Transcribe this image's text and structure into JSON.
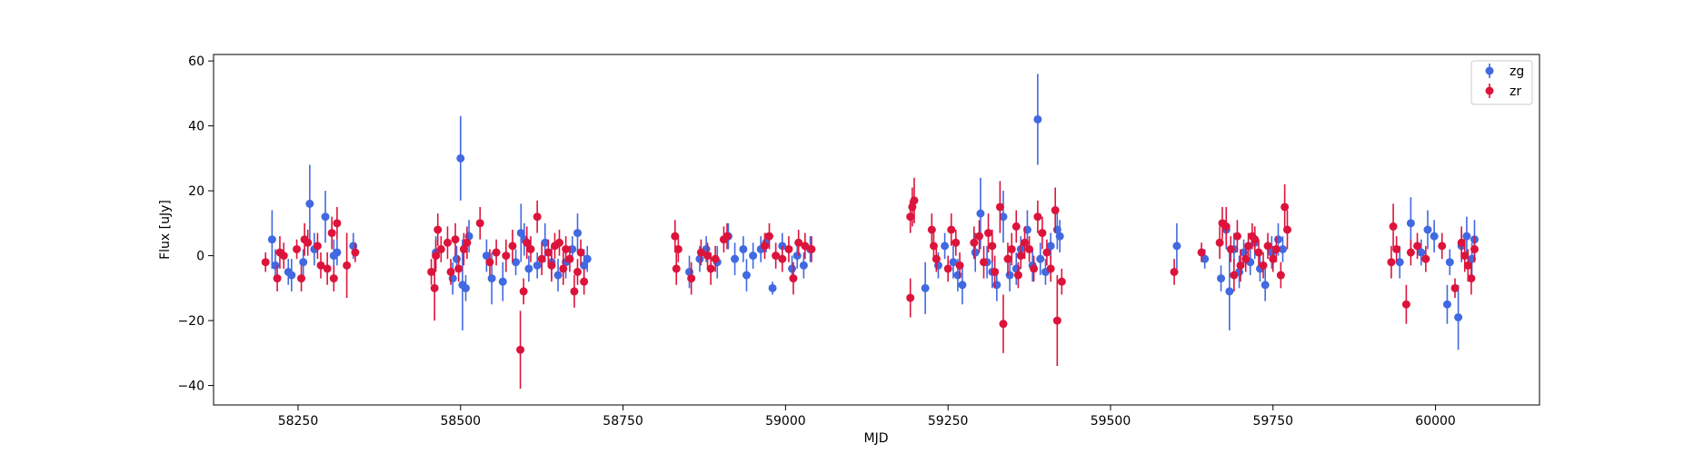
{
  "chart_data": {
    "type": "scatter",
    "title": "",
    "xlabel": "MJD",
    "ylabel": "Flux [uJy]",
    "xlim": [
      58120,
      60160
    ],
    "ylim": [
      -46,
      62
    ],
    "xticks": [
      58250,
      58500,
      58750,
      59000,
      59250,
      59500,
      59750,
      60000
    ],
    "yticks": [
      -40,
      -20,
      0,
      20,
      40,
      60
    ],
    "grid": false,
    "legend_position": "top-right",
    "series": [
      {
        "name": "zg",
        "color": "#4169e1",
        "points": [
          [
            58210,
            5,
            9
          ],
          [
            58215,
            -3,
            5
          ],
          [
            58235,
            -5,
            4
          ],
          [
            58240,
            -6,
            5
          ],
          [
            58258,
            -2,
            4
          ],
          [
            58268,
            16,
            12
          ],
          [
            58275,
            2,
            5
          ],
          [
            58292,
            12,
            8
          ],
          [
            58305,
            0,
            5
          ],
          [
            58310,
            1,
            4
          ],
          [
            58335,
            3,
            4
          ],
          [
            58462,
            1,
            5
          ],
          [
            58488,
            -7,
            5
          ],
          [
            58494,
            -1,
            4
          ],
          [
            58500,
            30,
            13
          ],
          [
            58503,
            -9,
            14
          ],
          [
            58508,
            -10,
            4
          ],
          [
            58513,
            6,
            5
          ],
          [
            58540,
            0,
            5
          ],
          [
            58548,
            -7,
            8
          ],
          [
            58565,
            -8,
            6
          ],
          [
            58585,
            -2,
            4
          ],
          [
            58593,
            7,
            9
          ],
          [
            58598,
            5,
            5
          ],
          [
            58605,
            -4,
            4
          ],
          [
            58618,
            -3,
            4
          ],
          [
            58630,
            4,
            6
          ],
          [
            58640,
            -2,
            5
          ],
          [
            58650,
            -6,
            5
          ],
          [
            58662,
            -2,
            5
          ],
          [
            58672,
            2,
            4
          ],
          [
            58680,
            7,
            6
          ],
          [
            58690,
            -3,
            5
          ],
          [
            58695,
            -1,
            4
          ],
          [
            58852,
            -5,
            5
          ],
          [
            58868,
            -1,
            4
          ],
          [
            58878,
            2,
            4
          ],
          [
            58895,
            -2,
            5
          ],
          [
            58912,
            6,
            4
          ],
          [
            58922,
            -1,
            5
          ],
          [
            58935,
            2,
            4
          ],
          [
            58940,
            -6,
            5
          ],
          [
            58950,
            0,
            4
          ],
          [
            58962,
            2,
            4
          ],
          [
            58970,
            4,
            3
          ],
          [
            58980,
            -10,
            2
          ],
          [
            58995,
            3,
            4
          ],
          [
            59010,
            -4,
            4
          ],
          [
            59018,
            0,
            4
          ],
          [
            59028,
            -3,
            4
          ],
          [
            59038,
            2,
            4
          ],
          [
            59215,
            -10,
            8
          ],
          [
            59235,
            -3,
            4
          ],
          [
            59245,
            3,
            4
          ],
          [
            59258,
            -2,
            5
          ],
          [
            59265,
            -6,
            5
          ],
          [
            59272,
            -9,
            6
          ],
          [
            59292,
            1,
            6
          ],
          [
            59300,
            13,
            11
          ],
          [
            59310,
            -2,
            5
          ],
          [
            59318,
            -5,
            5
          ],
          [
            59325,
            -9,
            5
          ],
          [
            59335,
            12,
            8
          ],
          [
            59345,
            -6,
            5
          ],
          [
            59355,
            -4,
            5
          ],
          [
            59362,
            2,
            4
          ],
          [
            59372,
            8,
            6
          ],
          [
            59380,
            -3,
            5
          ],
          [
            59388,
            42,
            14
          ],
          [
            59392,
            -1,
            5
          ],
          [
            59400,
            -5,
            4
          ],
          [
            59408,
            3,
            4
          ],
          [
            59418,
            8,
            6
          ],
          [
            59422,
            6,
            5
          ],
          [
            59602,
            3,
            7
          ],
          [
            59645,
            -1,
            3
          ],
          [
            59670,
            -7,
            4
          ],
          [
            59678,
            8,
            6
          ],
          [
            59683,
            -11,
            12
          ],
          [
            59690,
            2,
            5
          ],
          [
            59698,
            -5,
            5
          ],
          [
            59705,
            1,
            4
          ],
          [
            59715,
            -2,
            4
          ],
          [
            59722,
            4,
            5
          ],
          [
            59730,
            -4,
            4
          ],
          [
            59738,
            -9,
            5
          ],
          [
            59748,
            1,
            5
          ],
          [
            59758,
            5,
            5
          ],
          [
            59765,
            2,
            4
          ],
          [
            59945,
            -2,
            5
          ],
          [
            59962,
            10,
            8
          ],
          [
            59978,
            1,
            4
          ],
          [
            59988,
            8,
            6
          ],
          [
            59998,
            6,
            5
          ],
          [
            60018,
            -15,
            6
          ],
          [
            60022,
            -2,
            4
          ],
          [
            60035,
            -19,
            10
          ],
          [
            60040,
            3,
            5
          ],
          [
            60048,
            6,
            6
          ],
          [
            60056,
            -1,
            5
          ],
          [
            60060,
            5,
            6
          ]
        ]
      },
      {
        "name": "zr",
        "color": "#dc143c",
        "points": [
          [
            58200,
            -2,
            3
          ],
          [
            58218,
            -7,
            4
          ],
          [
            58222,
            1,
            5
          ],
          [
            58228,
            0,
            4
          ],
          [
            58248,
            2,
            3
          ],
          [
            58255,
            -7,
            4
          ],
          [
            58260,
            5,
            5
          ],
          [
            58265,
            4,
            4
          ],
          [
            58280,
            3,
            4
          ],
          [
            58285,
            -3,
            4
          ],
          [
            58295,
            -4,
            5
          ],
          [
            58302,
            7,
            5
          ],
          [
            58305,
            -7,
            4
          ],
          [
            58310,
            10,
            5
          ],
          [
            58325,
            -3,
            10
          ],
          [
            58338,
            1,
            3
          ],
          [
            58455,
            -5,
            4
          ],
          [
            58460,
            -10,
            10
          ],
          [
            58462,
            0,
            5
          ],
          [
            58465,
            8,
            5
          ],
          [
            58470,
            2,
            4
          ],
          [
            58480,
            4,
            5
          ],
          [
            58485,
            -5,
            4
          ],
          [
            58492,
            5,
            5
          ],
          [
            58497,
            -4,
            4
          ],
          [
            58505,
            2,
            5
          ],
          [
            58510,
            4,
            5
          ],
          [
            58530,
            10,
            5
          ],
          [
            58545,
            -2,
            4
          ],
          [
            58555,
            1,
            4
          ],
          [
            58570,
            0,
            5
          ],
          [
            58580,
            3,
            5
          ],
          [
            58592,
            -29,
            12
          ],
          [
            58597,
            -11,
            4
          ],
          [
            58602,
            4,
            5
          ],
          [
            58608,
            2,
            4
          ],
          [
            58618,
            12,
            5
          ],
          [
            58625,
            -1,
            5
          ],
          [
            58635,
            1,
            4
          ],
          [
            58640,
            -3,
            5
          ],
          [
            58645,
            3,
            4
          ],
          [
            58652,
            4,
            4
          ],
          [
            58658,
            -4,
            5
          ],
          [
            58662,
            2,
            4
          ],
          [
            58668,
            -1,
            4
          ],
          [
            58675,
            -11,
            5
          ],
          [
            58680,
            -5,
            4
          ],
          [
            58685,
            1,
            4
          ],
          [
            58690,
            -8,
            4
          ],
          [
            58830,
            6,
            5
          ],
          [
            58832,
            -4,
            5
          ],
          [
            58835,
            2,
            4
          ],
          [
            58855,
            -7,
            5
          ],
          [
            58870,
            1,
            4
          ],
          [
            58880,
            0,
            4
          ],
          [
            58885,
            -4,
            5
          ],
          [
            58892,
            -1,
            4
          ],
          [
            58905,
            5,
            4
          ],
          [
            58910,
            6,
            4
          ],
          [
            58968,
            3,
            4
          ],
          [
            58975,
            6,
            4
          ],
          [
            58985,
            0,
            4
          ],
          [
            58995,
            -1,
            4
          ],
          [
            59005,
            2,
            4
          ],
          [
            59012,
            -7,
            5
          ],
          [
            59020,
            4,
            4
          ],
          [
            59030,
            3,
            4
          ],
          [
            59040,
            2,
            4
          ],
          [
            59192,
            12,
            5
          ],
          [
            59195,
            15,
            6
          ],
          [
            59198,
            17,
            7
          ],
          [
            59192,
            -13,
            6
          ],
          [
            59225,
            8,
            5
          ],
          [
            59228,
            3,
            4
          ],
          [
            59232,
            -1,
            4
          ],
          [
            59250,
            -4,
            4
          ],
          [
            59255,
            8,
            5
          ],
          [
            59262,
            4,
            4
          ],
          [
            59268,
            -3,
            4
          ],
          [
            59290,
            4,
            5
          ],
          [
            59298,
            6,
            5
          ],
          [
            59305,
            -2,
            5
          ],
          [
            59312,
            7,
            6
          ],
          [
            59318,
            3,
            5
          ],
          [
            59322,
            -5,
            5
          ],
          [
            59330,
            15,
            8
          ],
          [
            59335,
            -21,
            9
          ],
          [
            59342,
            -1,
            5
          ],
          [
            59348,
            2,
            5
          ],
          [
            59355,
            9,
            5
          ],
          [
            59358,
            -6,
            4
          ],
          [
            59362,
            0,
            4
          ],
          [
            59368,
            4,
            5
          ],
          [
            59375,
            2,
            4
          ],
          [
            59382,
            -4,
            4
          ],
          [
            59388,
            12,
            5
          ],
          [
            59395,
            7,
            5
          ],
          [
            59402,
            1,
            4
          ],
          [
            59408,
            -4,
            4
          ],
          [
            59415,
            14,
            7
          ],
          [
            59418,
            -20,
            14
          ],
          [
            59425,
            -8,
            4
          ],
          [
            59598,
            -5,
            4
          ],
          [
            59640,
            1,
            3
          ],
          [
            59668,
            4,
            5
          ],
          [
            59672,
            10,
            5
          ],
          [
            59678,
            9,
            6
          ],
          [
            59685,
            2,
            4
          ],
          [
            59690,
            -6,
            5
          ],
          [
            59695,
            6,
            5
          ],
          [
            59700,
            -3,
            5
          ],
          [
            59708,
            -1,
            4
          ],
          [
            59712,
            3,
            4
          ],
          [
            59718,
            6,
            4
          ],
          [
            59722,
            5,
            4
          ],
          [
            59728,
            1,
            4
          ],
          [
            59735,
            -3,
            4
          ],
          [
            59742,
            3,
            4
          ],
          [
            59750,
            -1,
            4
          ],
          [
            59755,
            2,
            4
          ],
          [
            59762,
            -6,
            4
          ],
          [
            59768,
            15,
            7
          ],
          [
            59772,
            8,
            6
          ],
          [
            59932,
            -2,
            5
          ],
          [
            59935,
            9,
            7
          ],
          [
            59940,
            2,
            4
          ],
          [
            59955,
            -15,
            6
          ],
          [
            59962,
            1,
            4
          ],
          [
            59972,
            3,
            4
          ],
          [
            59985,
            -1,
            4
          ],
          [
            60010,
            3,
            4
          ],
          [
            60030,
            -10,
            3
          ],
          [
            60040,
            4,
            5
          ],
          [
            60045,
            0,
            5
          ],
          [
            60050,
            -3,
            5
          ],
          [
            60055,
            -7,
            5
          ],
          [
            60060,
            2,
            4
          ]
        ]
      }
    ]
  }
}
